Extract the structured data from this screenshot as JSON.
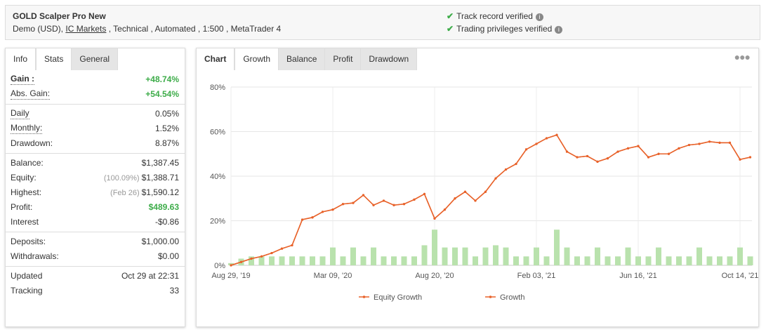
{
  "header": {
    "title": "GOLD Scalper Pro New",
    "subtitle": [
      "Demo (USD),",
      "IC Markets",
      ", Technical , Automated , 1:500 , MetaTrader 4"
    ],
    "verified": [
      "Track record verified",
      "Trading privileges verified"
    ]
  },
  "info_tabs": [
    "Info",
    "Stats",
    "General"
  ],
  "stats": [
    [
      {
        "label": "Gain :",
        "value": "+48.74%",
        "color": "#3dac49",
        "bold": true,
        "underline": true
      },
      {
        "label": "Abs. Gain:",
        "value": "+54.54%",
        "color": "#3dac49",
        "underline": true
      }
    ],
    [
      {
        "label": "Daily",
        "value": "0.05%",
        "underline": true
      },
      {
        "label": "Monthly:",
        "value": "1.52%",
        "underline": true
      },
      {
        "label": "Drawdown:",
        "value": "8.87%"
      }
    ],
    [
      {
        "label": "Balance:",
        "value": "$1,387.45"
      },
      {
        "label": "Equity:",
        "note": "(100.09%)",
        "value": "$1,388.71"
      },
      {
        "label": "Highest:",
        "note": "(Feb 26)",
        "value": "$1,590.12"
      },
      {
        "label": "Profit:",
        "value": "$489.63",
        "color": "#3dac49"
      },
      {
        "label": "Interest",
        "value": "-$0.86"
      }
    ],
    [
      {
        "label": "Deposits:",
        "value": "$1,000.00"
      },
      {
        "label": "Withdrawals:",
        "value": "$0.00"
      }
    ],
    [
      {
        "label": "Updated",
        "value": "Oct 29 at 22:31"
      },
      {
        "label": "Tracking",
        "value": "33"
      }
    ]
  ],
  "chart_tabs": [
    "Chart",
    "Growth",
    "Balance",
    "Profit",
    "Drawdown"
  ],
  "chart_data": {
    "type": "line",
    "categories": [
      "Aug 29, '19",
      null,
      null,
      null,
      null,
      null,
      null,
      null,
      null,
      null,
      "Mar 09, '20",
      null,
      null,
      null,
      null,
      null,
      null,
      null,
      null,
      null,
      "Aug 20, '20",
      null,
      null,
      null,
      null,
      null,
      null,
      null,
      null,
      null,
      "Feb 03, '21",
      null,
      null,
      null,
      null,
      null,
      null,
      null,
      null,
      null,
      "Jun 16, '21",
      null,
      null,
      null,
      null,
      null,
      null,
      null,
      null,
      null,
      "Oct 14, '21",
      null
    ],
    "series": [
      {
        "name": "Equity Growth",
        "color": "#e8622a",
        "values": [
          0,
          1.5,
          3,
          4,
          5.5,
          7.5,
          9,
          20.5,
          21.5,
          24,
          25,
          27.5,
          28,
          31.5,
          27,
          29,
          27,
          27.5,
          29.5,
          32,
          21,
          25,
          30,
          33,
          29,
          33,
          39,
          43,
          45.5,
          52,
          54.5,
          57,
          58.5,
          51,
          48.5,
          49,
          46.5,
          48,
          51,
          52.5,
          53.5,
          48.5,
          50,
          50,
          52.5,
          54,
          54.5,
          55.5,
          55,
          55,
          47.5,
          48.5
        ]
      },
      {
        "name": "Growth",
        "color": "#e8622a",
        "values": [
          0,
          1.5,
          3,
          4,
          5.5,
          7.5,
          9,
          20.5,
          21.5,
          24,
          25,
          27.5,
          28,
          31.5,
          27,
          29,
          27,
          27.5,
          29.5,
          32,
          21,
          25,
          30,
          33,
          29,
          33,
          39,
          43,
          45.5,
          52,
          54.5,
          57,
          58.5,
          51,
          48.5,
          49,
          46.5,
          48,
          51,
          52.5,
          53.5,
          48.5,
          50,
          50,
          52.5,
          54,
          54.5,
          55.5,
          55,
          55,
          47.5,
          48.5
        ]
      },
      {
        "type": "bar",
        "color": "#b9e2ad",
        "values": [
          1,
          3,
          4,
          4,
          4,
          4,
          4,
          4,
          4,
          4,
          8,
          4,
          8,
          4,
          8,
          4,
          4,
          4,
          4,
          9,
          16,
          8,
          8,
          8,
          4,
          8,
          9,
          8,
          4,
          4,
          8,
          4,
          16,
          8,
          4,
          4,
          8,
          4,
          4,
          8,
          4,
          4,
          8,
          4,
          4,
          4,
          8,
          4,
          4,
          4,
          8,
          4
        ]
      }
    ],
    "ylim": [
      0,
      80
    ],
    "yticks": [
      {
        "value": 0,
        "label": "0%"
      },
      {
        "value": 20,
        "label": "20%"
      },
      {
        "value": 40,
        "label": "40%"
      },
      {
        "value": 60,
        "label": "60%"
      },
      {
        "value": 80,
        "label": "80%"
      }
    ],
    "grid": true
  }
}
